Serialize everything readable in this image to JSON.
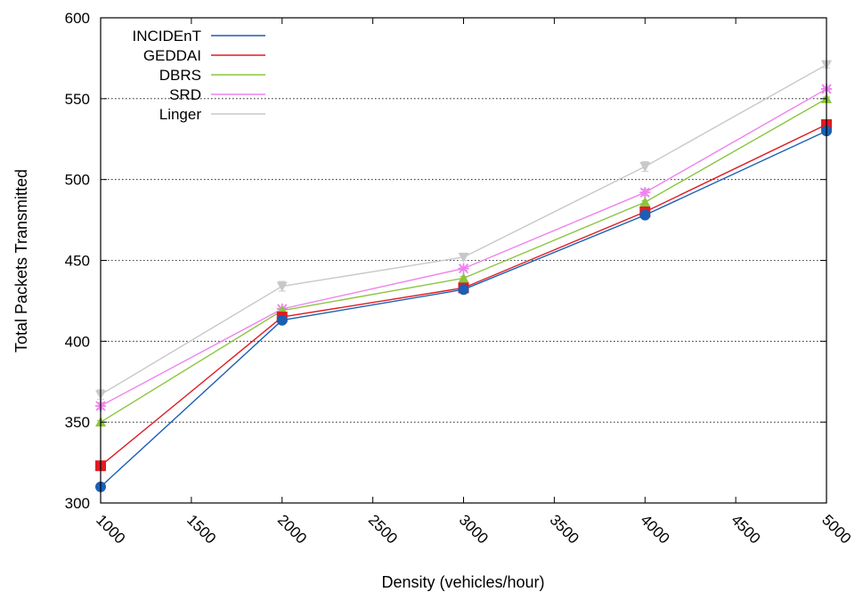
{
  "chart_data": {
    "type": "line",
    "xlabel": "Density (vehicles/hour)",
    "ylabel": "Total Packets Transmitted",
    "xlim": [
      1000,
      5000
    ],
    "ylim": [
      300,
      600
    ],
    "xticks": [
      1000,
      1500,
      2000,
      2500,
      3000,
      3500,
      4000,
      4500,
      5000
    ],
    "yticks": [
      300,
      350,
      400,
      450,
      500,
      550,
      600
    ],
    "grid": "horizontal dotted",
    "legend_position": "top-left",
    "x": [
      1000,
      2000,
      3000,
      4000,
      5000
    ],
    "series": [
      {
        "name": "INCIDEnT",
        "color": "#1a5fb4",
        "marker": "circle",
        "values": [
          310,
          413,
          432,
          478,
          530
        ],
        "errors": [
          1,
          1,
          1,
          1,
          1
        ]
      },
      {
        "name": "GEDDAI",
        "color": "#e01b24",
        "marker": "square",
        "values": [
          323,
          415,
          433,
          480,
          534
        ],
        "errors": [
          1,
          1,
          1,
          1,
          1
        ]
      },
      {
        "name": "DBRS",
        "color": "#8bc53f",
        "marker": "triangle",
        "values": [
          350,
          419,
          439,
          486,
          550
        ],
        "errors": [
          1,
          1,
          1,
          1,
          1
        ]
      },
      {
        "name": "SRD",
        "color": "#ee82ee",
        "marker": "star",
        "values": [
          360,
          420,
          445,
          492,
          556
        ],
        "errors": [
          2,
          1,
          1,
          2,
          1
        ]
      },
      {
        "name": "Linger",
        "color": "#c8c8c8",
        "marker": "triangle-down",
        "values": [
          367,
          434,
          452,
          508,
          571
        ],
        "errors": [
          3,
          3,
          2,
          3,
          2
        ]
      }
    ]
  }
}
